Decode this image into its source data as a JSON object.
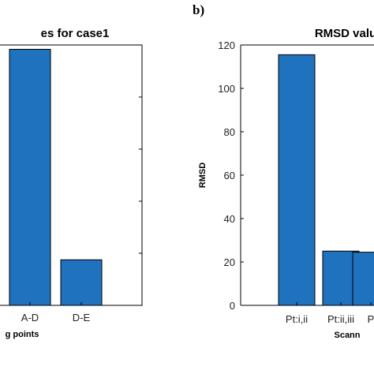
{
  "panel_label": "b)",
  "chart_data": [
    {
      "type": "bar",
      "title": "es for case1",
      "xlabel": "g points",
      "ylabel": "",
      "categories": [
        "A-D",
        "D-E"
      ],
      "values": [
        118,
        21
      ],
      "ylim": [
        0,
        120
      ],
      "yticks": [],
      "bar_color": "#1f72bd",
      "grid": false
    },
    {
      "type": "bar",
      "title": "RMSD valu",
      "xlabel": "Scann",
      "ylabel": "RMSD",
      "categories": [
        "Pt:i,ii",
        "Pt:ii,iii",
        "P"
      ],
      "values": [
        115.5,
        25,
        24.5
      ],
      "ylim": [
        0,
        120
      ],
      "yticks": [
        "0",
        "20",
        "40",
        "60",
        "80",
        "100",
        "120"
      ],
      "bar_color": "#1f72bd",
      "grid": false
    }
  ]
}
